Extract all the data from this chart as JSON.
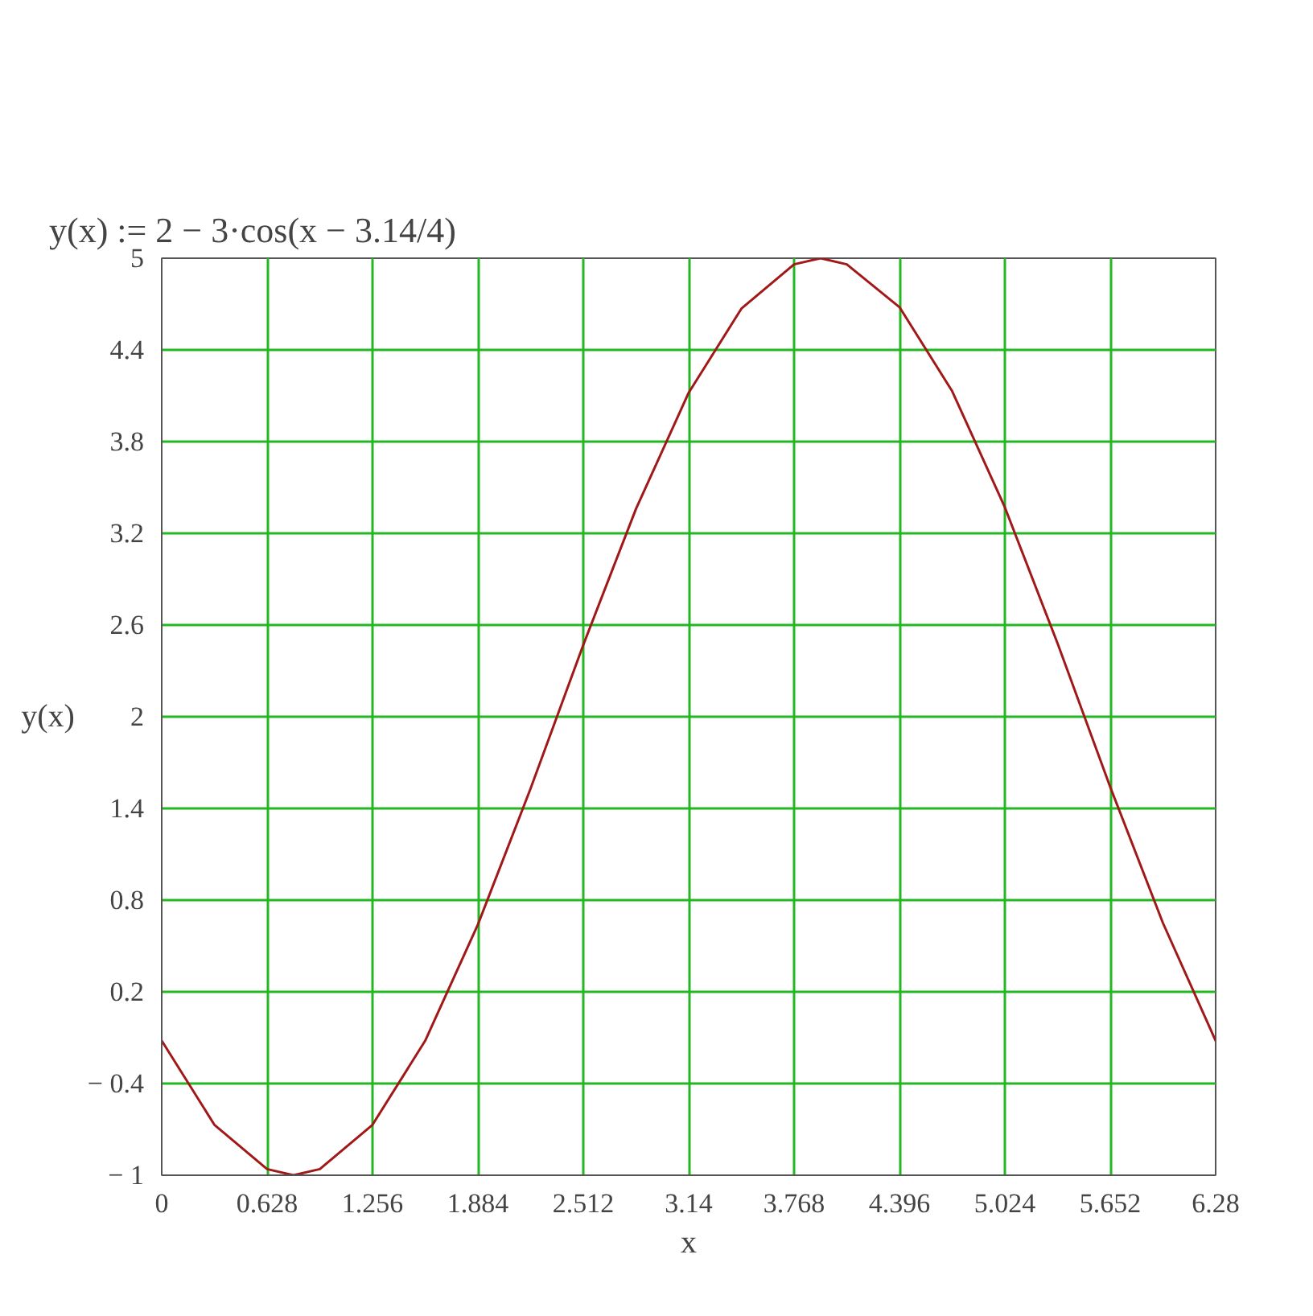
{
  "chart_data": {
    "type": "line",
    "title": "y(x) := 2 − 3·cos(x − 3.14/4)",
    "xlabel": "x",
    "ylabel": "y(x)",
    "x": [
      0,
      0.314,
      0.628,
      0.785,
      0.942,
      1.256,
      1.57,
      1.884,
      2.198,
      2.512,
      2.826,
      3.14,
      3.454,
      3.768,
      3.926,
      4.082,
      4.396,
      4.71,
      5.024,
      5.338,
      5.652,
      5.966,
      6.28
    ],
    "series": [
      {
        "color": "#a01818",
        "values": [
          -0.12,
          -0.67,
          -0.96,
          -1.0,
          -0.96,
          -0.67,
          -0.12,
          0.64,
          1.53,
          2.47,
          3.36,
          4.12,
          4.67,
          4.96,
          5.0,
          4.96,
          4.68,
          4.13,
          3.37,
          2.48,
          1.54,
          0.65,
          -0.12
        ]
      }
    ],
    "xlim": [
      0,
      6.28
    ],
    "ylim": [
      -1,
      5
    ],
    "xticks": [
      0,
      0.628,
      1.256,
      1.884,
      2.512,
      3.14,
      3.768,
      4.396,
      5.024,
      5.652,
      6.28
    ],
    "yticks": [
      {
        "value": -1,
        "label": "− 1"
      },
      {
        "value": -0.4,
        "label": "− 0.4"
      },
      0.2,
      0.8,
      1.4,
      2,
      2.6,
      3.2,
      3.8,
      4.4,
      5
    ],
    "grid": true,
    "line_style": "solid"
  }
}
